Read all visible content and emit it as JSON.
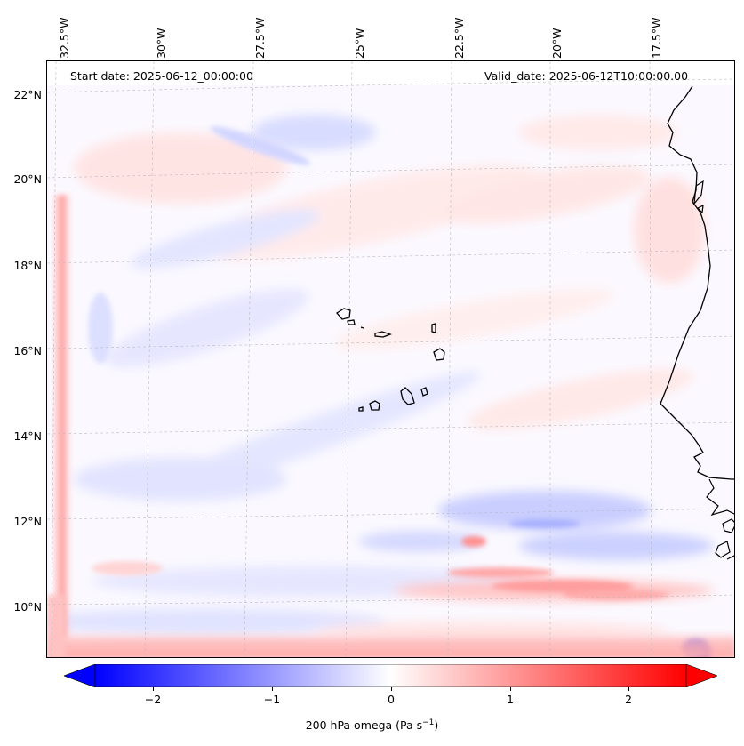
{
  "header": {
    "start_date": "Start date: 2025-06-12_00:00:00",
    "valid_date": "Valid_date: 2025-06-12T10:00:00.00"
  },
  "axes": {
    "longitude_labels": [
      "32.5°W",
      "30°W",
      "27.5°W",
      "25°W",
      "22.5°W",
      "20°W",
      "17.5°W"
    ],
    "latitude_labels": [
      "22°N",
      "20°N",
      "18°N",
      "16°N",
      "14°N",
      "12°N",
      "10°N"
    ]
  },
  "colorbar": {
    "label_main": "200 hPa omega (Pa s",
    "label_sup": "−1",
    "label_end": ")",
    "ticks": [
      "−2",
      "−1",
      "0",
      "1",
      "2"
    ],
    "range": [
      -2.6,
      2.6
    ],
    "colors": {
      "min": "#0000ff",
      "mid": "#ffffff",
      "max": "#ff0000"
    }
  },
  "map": {
    "field": "200 hPa omega",
    "colormap": "bwr",
    "coastline_color": "#000000",
    "gridlines": "dashed light gray"
  }
}
